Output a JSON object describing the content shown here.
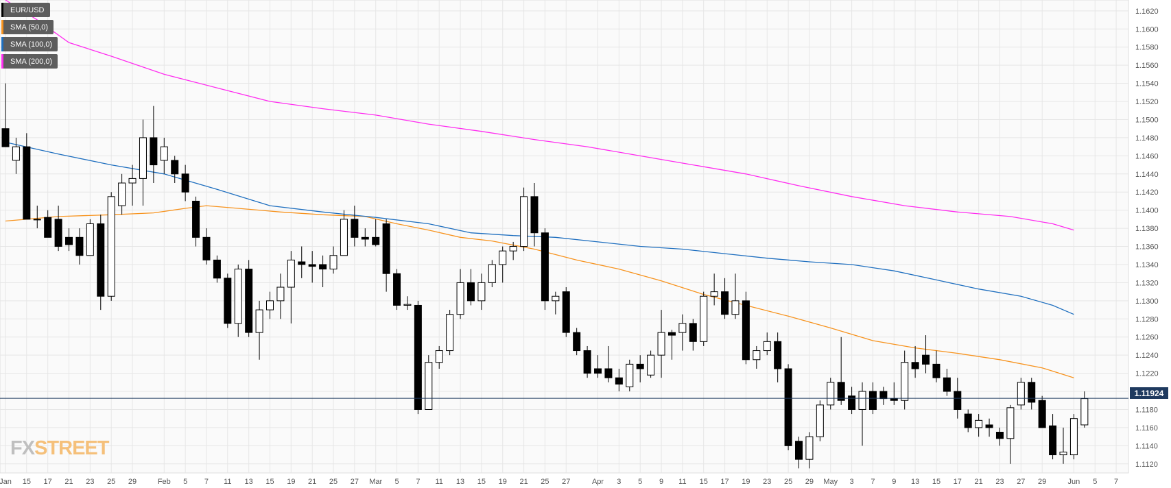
{
  "legend": [
    {
      "label": "EUR/USD",
      "color": "#000000"
    },
    {
      "label": "SMA (50,0)",
      "color": "#f7931e"
    },
    {
      "label": "SMA (100,0)",
      "color": "#1f6fbf"
    },
    {
      "label": "SMA (200,0)",
      "color": "#ff2cf0"
    }
  ],
  "logo": {
    "fx": "FX",
    "street": "STREET"
  },
  "last_price_label": "1.11924",
  "colors": {
    "up": "#ffffff",
    "down": "#000000",
    "grid": "#e6e6e6",
    "sma50": "#f7931e",
    "sma100": "#1f6fbf",
    "sma200": "#ff2cf0",
    "last_line": "#1f3a5f"
  },
  "chart_data": {
    "type": "candlestick",
    "title": "",
    "ylim": [
      1.111,
      1.1632
    ],
    "y_ticks": [
      "1.1120",
      "1.1140",
      "1.1160",
      "1.1180",
      "1.1200",
      "1.1220",
      "1.1240",
      "1.1260",
      "1.1280",
      "1.1300",
      "1.1320",
      "1.1340",
      "1.1360",
      "1.1380",
      "1.1400",
      "1.1420",
      "1.1440",
      "1.1460",
      "1.1480",
      "1.1500",
      "1.1520",
      "1.1540",
      "1.1560",
      "1.1580",
      "1.1600",
      "1.1620"
    ],
    "x_ticks": [
      {
        "label": "Jan",
        "i": 0
      },
      {
        "label": "15",
        "i": 2
      },
      {
        "label": "17",
        "i": 4
      },
      {
        "label": "21",
        "i": 6
      },
      {
        "label": "23",
        "i": 8
      },
      {
        "label": "25",
        "i": 10
      },
      {
        "label": "29",
        "i": 12
      },
      {
        "label": "Feb",
        "i": 15
      },
      {
        "label": "5",
        "i": 17
      },
      {
        "label": "7",
        "i": 19
      },
      {
        "label": "11",
        "i": 21
      },
      {
        "label": "13",
        "i": 23
      },
      {
        "label": "15",
        "i": 25
      },
      {
        "label": "19",
        "i": 27
      },
      {
        "label": "21",
        "i": 29
      },
      {
        "label": "25",
        "i": 31
      },
      {
        "label": "27",
        "i": 33
      },
      {
        "label": "Mar",
        "i": 35
      },
      {
        "label": "5",
        "i": 37
      },
      {
        "label": "7",
        "i": 39
      },
      {
        "label": "11",
        "i": 41
      },
      {
        "label": "13",
        "i": 43
      },
      {
        "label": "15",
        "i": 45
      },
      {
        "label": "19",
        "i": 47
      },
      {
        "label": "21",
        "i": 49
      },
      {
        "label": "25",
        "i": 51
      },
      {
        "label": "27",
        "i": 53
      },
      {
        "label": "Apr",
        "i": 56
      },
      {
        "label": "3",
        "i": 58
      },
      {
        "label": "5",
        "i": 60
      },
      {
        "label": "9",
        "i": 62
      },
      {
        "label": "11",
        "i": 64
      },
      {
        "label": "15",
        "i": 66
      },
      {
        "label": "17",
        "i": 68
      },
      {
        "label": "19",
        "i": 70
      },
      {
        "label": "23",
        "i": 72
      },
      {
        "label": "25",
        "i": 74
      },
      {
        "label": "29",
        "i": 76
      },
      {
        "label": "May",
        "i": 78
      },
      {
        "label": "3",
        "i": 80
      },
      {
        "label": "7",
        "i": 82
      },
      {
        "label": "9",
        "i": 84
      },
      {
        "label": "13",
        "i": 86
      },
      {
        "label": "15",
        "i": 88
      },
      {
        "label": "17",
        "i": 90
      },
      {
        "label": "21",
        "i": 92
      },
      {
        "label": "23",
        "i": 94
      },
      {
        "label": "27",
        "i": 96
      },
      {
        "label": "29",
        "i": 98
      },
      {
        "label": "Jun",
        "i": 101
      },
      {
        "label": "5",
        "i": 103
      },
      {
        "label": "7",
        "i": 105
      }
    ],
    "candles": [
      {
        "o": 1.149,
        "h": 1.154,
        "l": 1.147,
        "c": 1.147
      },
      {
        "o": 1.1455,
        "h": 1.148,
        "l": 1.144,
        "c": 1.147
      },
      {
        "o": 1.147,
        "h": 1.1485,
        "l": 1.139,
        "c": 1.139
      },
      {
        "o": 1.139,
        "h": 1.1405,
        "l": 1.138,
        "c": 1.139
      },
      {
        "o": 1.1392,
        "h": 1.14,
        "l": 1.137,
        "c": 1.137
      },
      {
        "o": 1.139,
        "h": 1.1405,
        "l": 1.1355,
        "c": 1.136
      },
      {
        "o": 1.137,
        "h": 1.138,
        "l": 1.1355,
        "c": 1.1362
      },
      {
        "o": 1.137,
        "h": 1.138,
        "l": 1.134,
        "c": 1.135
      },
      {
        "o": 1.135,
        "h": 1.139,
        "l": 1.135,
        "c": 1.1385
      },
      {
        "o": 1.1385,
        "h": 1.1395,
        "l": 1.129,
        "c": 1.1305
      },
      {
        "o": 1.1305,
        "h": 1.142,
        "l": 1.13,
        "c": 1.1415
      },
      {
        "o": 1.1405,
        "h": 1.144,
        "l": 1.1395,
        "c": 1.143
      },
      {
        "o": 1.143,
        "h": 1.145,
        "l": 1.1405,
        "c": 1.1435
      },
      {
        "o": 1.1435,
        "h": 1.15,
        "l": 1.1405,
        "c": 1.148
      },
      {
        "o": 1.148,
        "h": 1.1515,
        "l": 1.143,
        "c": 1.145
      },
      {
        "o": 1.1455,
        "h": 1.148,
        "l": 1.144,
        "c": 1.147
      },
      {
        "o": 1.1455,
        "h": 1.146,
        "l": 1.143,
        "c": 1.144
      },
      {
        "o": 1.144,
        "h": 1.145,
        "l": 1.141,
        "c": 1.142
      },
      {
        "o": 1.141,
        "h": 1.1415,
        "l": 1.136,
        "c": 1.137
      },
      {
        "o": 1.137,
        "h": 1.138,
        "l": 1.134,
        "c": 1.1345
      },
      {
        "o": 1.1345,
        "h": 1.135,
        "l": 1.132,
        "c": 1.1325
      },
      {
        "o": 1.1325,
        "h": 1.133,
        "l": 1.127,
        "c": 1.1275
      },
      {
        "o": 1.1275,
        "h": 1.134,
        "l": 1.126,
        "c": 1.1335
      },
      {
        "o": 1.1335,
        "h": 1.1345,
        "l": 1.126,
        "c": 1.1265
      },
      {
        "o": 1.1265,
        "h": 1.13,
        "l": 1.1235,
        "c": 1.129
      },
      {
        "o": 1.129,
        "h": 1.131,
        "l": 1.128,
        "c": 1.13
      },
      {
        "o": 1.13,
        "h": 1.133,
        "l": 1.128,
        "c": 1.1315
      },
      {
        "o": 1.1315,
        "h": 1.1355,
        "l": 1.1275,
        "c": 1.1345
      },
      {
        "o": 1.1343,
        "h": 1.136,
        "l": 1.1325,
        "c": 1.134
      },
      {
        "o": 1.134,
        "h": 1.1355,
        "l": 1.132,
        "c": 1.1338
      },
      {
        "o": 1.134,
        "h": 1.135,
        "l": 1.1315,
        "c": 1.1335
      },
      {
        "o": 1.1335,
        "h": 1.136,
        "l": 1.133,
        "c": 1.135
      },
      {
        "o": 1.135,
        "h": 1.14,
        "l": 1.135,
        "c": 1.139
      },
      {
        "o": 1.139,
        "h": 1.1405,
        "l": 1.136,
        "c": 1.137
      },
      {
        "o": 1.137,
        "h": 1.138,
        "l": 1.136,
        "c": 1.1368
      },
      {
        "o": 1.137,
        "h": 1.139,
        "l": 1.136,
        "c": 1.1362
      },
      {
        "o": 1.1385,
        "h": 1.139,
        "l": 1.131,
        "c": 1.133
      },
      {
        "o": 1.133,
        "h": 1.1335,
        "l": 1.129,
        "c": 1.1295
      },
      {
        "o": 1.1295,
        "h": 1.1305,
        "l": 1.129,
        "c": 1.1296
      },
      {
        "o": 1.1295,
        "h": 1.13,
        "l": 1.1175,
        "c": 1.118
      },
      {
        "o": 1.118,
        "h": 1.124,
        "l": 1.118,
        "c": 1.1232
      },
      {
        "o": 1.1232,
        "h": 1.125,
        "l": 1.1225,
        "c": 1.1245
      },
      {
        "o": 1.1245,
        "h": 1.129,
        "l": 1.124,
        "c": 1.1285
      },
      {
        "o": 1.1285,
        "h": 1.1335,
        "l": 1.128,
        "c": 1.132
      },
      {
        "o": 1.132,
        "h": 1.1335,
        "l": 1.1295,
        "c": 1.13
      },
      {
        "o": 1.13,
        "h": 1.133,
        "l": 1.129,
        "c": 1.132
      },
      {
        "o": 1.132,
        "h": 1.1345,
        "l": 1.1315,
        "c": 1.134
      },
      {
        "o": 1.134,
        "h": 1.136,
        "l": 1.132,
        "c": 1.1355
      },
      {
        "o": 1.1355,
        "h": 1.1365,
        "l": 1.1345,
        "c": 1.136
      },
      {
        "o": 1.136,
        "h": 1.1425,
        "l": 1.1355,
        "c": 1.1415
      },
      {
        "o": 1.1415,
        "h": 1.143,
        "l": 1.136,
        "c": 1.1375
      },
      {
        "o": 1.1375,
        "h": 1.138,
        "l": 1.129,
        "c": 1.13
      },
      {
        "o": 1.13,
        "h": 1.131,
        "l": 1.1285,
        "c": 1.1305
      },
      {
        "o": 1.131,
        "h": 1.1315,
        "l": 1.126,
        "c": 1.1265
      },
      {
        "o": 1.1265,
        "h": 1.127,
        "l": 1.124,
        "c": 1.1245
      },
      {
        "o": 1.1245,
        "h": 1.125,
        "l": 1.1215,
        "c": 1.122
      },
      {
        "o": 1.1225,
        "h": 1.124,
        "l": 1.1215,
        "c": 1.122
      },
      {
        "o": 1.1225,
        "h": 1.125,
        "l": 1.121,
        "c": 1.1215
      },
      {
        "o": 1.1215,
        "h": 1.1225,
        "l": 1.12,
        "c": 1.1208
      },
      {
        "o": 1.1205,
        "h": 1.1235,
        "l": 1.12,
        "c": 1.123
      },
      {
        "o": 1.123,
        "h": 1.124,
        "l": 1.121,
        "c": 1.1225
      },
      {
        "o": 1.1218,
        "h": 1.1245,
        "l": 1.1215,
        "c": 1.124
      },
      {
        "o": 1.124,
        "h": 1.129,
        "l": 1.1215,
        "c": 1.1265
      },
      {
        "o": 1.1265,
        "h": 1.1268,
        "l": 1.1235,
        "c": 1.1262
      },
      {
        "o": 1.1265,
        "h": 1.1285,
        "l": 1.1245,
        "c": 1.1275
      },
      {
        "o": 1.1275,
        "h": 1.128,
        "l": 1.1245,
        "c": 1.1255
      },
      {
        "o": 1.1255,
        "h": 1.131,
        "l": 1.125,
        "c": 1.1305
      },
      {
        "o": 1.1305,
        "h": 1.133,
        "l": 1.1295,
        "c": 1.131
      },
      {
        "o": 1.131,
        "h": 1.1325,
        "l": 1.128,
        "c": 1.1285
      },
      {
        "o": 1.1285,
        "h": 1.133,
        "l": 1.128,
        "c": 1.13
      },
      {
        "o": 1.13,
        "h": 1.131,
        "l": 1.123,
        "c": 1.1235
      },
      {
        "o": 1.1235,
        "h": 1.125,
        "l": 1.1225,
        "c": 1.1245
      },
      {
        "o": 1.1245,
        "h": 1.1265,
        "l": 1.124,
        "c": 1.1255
      },
      {
        "o": 1.1255,
        "h": 1.1265,
        "l": 1.121,
        "c": 1.1225
      },
      {
        "o": 1.1225,
        "h": 1.123,
        "l": 1.1135,
        "c": 1.114
      },
      {
        "o": 1.1145,
        "h": 1.115,
        "l": 1.1115,
        "c": 1.1125
      },
      {
        "o": 1.1125,
        "h": 1.1155,
        "l": 1.1115,
        "c": 1.115
      },
      {
        "o": 1.115,
        "h": 1.119,
        "l": 1.1145,
        "c": 1.1185
      },
      {
        "o": 1.1185,
        "h": 1.1215,
        "l": 1.118,
        "c": 1.121
      },
      {
        "o": 1.121,
        "h": 1.126,
        "l": 1.1185,
        "c": 1.119
      },
      {
        "o": 1.1195,
        "h": 1.1205,
        "l": 1.1175,
        "c": 1.118
      },
      {
        "o": 1.118,
        "h": 1.121,
        "l": 1.114,
        "c": 1.12
      },
      {
        "o": 1.12,
        "h": 1.121,
        "l": 1.1175,
        "c": 1.118
      },
      {
        "o": 1.12,
        "h": 1.1205,
        "l": 1.1185,
        "c": 1.1192
      },
      {
        "o": 1.1192,
        "h": 1.121,
        "l": 1.1185,
        "c": 1.119
      },
      {
        "o": 1.119,
        "h": 1.1245,
        "l": 1.118,
        "c": 1.1232
      },
      {
        "o": 1.1232,
        "h": 1.125,
        "l": 1.1215,
        "c": 1.1225
      },
      {
        "o": 1.124,
        "h": 1.1262,
        "l": 1.122,
        "c": 1.123
      },
      {
        "o": 1.123,
        "h": 1.1245,
        "l": 1.121,
        "c": 1.1215
      },
      {
        "o": 1.1215,
        "h": 1.1225,
        "l": 1.1195,
        "c": 1.12
      },
      {
        "o": 1.12,
        "h": 1.1215,
        "l": 1.117,
        "c": 1.118
      },
      {
        "o": 1.1175,
        "h": 1.118,
        "l": 1.1155,
        "c": 1.116
      },
      {
        "o": 1.116,
        "h": 1.1175,
        "l": 1.115,
        "c": 1.1168
      },
      {
        "o": 1.1163,
        "h": 1.117,
        "l": 1.115,
        "c": 1.116
      },
      {
        "o": 1.1155,
        "h": 1.116,
        "l": 1.114,
        "c": 1.1148
      },
      {
        "o": 1.1148,
        "h": 1.1185,
        "l": 1.112,
        "c": 1.1182
      },
      {
        "o": 1.1185,
        "h": 1.1215,
        "l": 1.118,
        "c": 1.121
      },
      {
        "o": 1.121,
        "h": 1.1215,
        "l": 1.118,
        "c": 1.1188
      },
      {
        "o": 1.119,
        "h": 1.1195,
        "l": 1.116,
        "c": 1.116
      },
      {
        "o": 1.1162,
        "h": 1.1175,
        "l": 1.1125,
        "c": 1.113
      },
      {
        "o": 1.113,
        "h": 1.116,
        "l": 1.112,
        "c": 1.1133
      },
      {
        "o": 1.113,
        "h": 1.1175,
        "l": 1.1125,
        "c": 1.117
      },
      {
        "o": 1.1163,
        "h": 1.12,
        "l": 1.116,
        "c": 1.1192
      }
    ],
    "series": [
      {
        "name": "SMA (50,0)",
        "points": [
          [
            0,
            1.1388
          ],
          [
            5,
            1.1393
          ],
          [
            10,
            1.1395
          ],
          [
            14,
            1.1397
          ],
          [
            17,
            1.1402
          ],
          [
            19,
            1.1405
          ],
          [
            22,
            1.1402
          ],
          [
            26,
            1.1398
          ],
          [
            30,
            1.1395
          ],
          [
            34,
            1.1393
          ],
          [
            37,
            1.1385
          ],
          [
            40,
            1.1378
          ],
          [
            43,
            1.137
          ],
          [
            46,
            1.1366
          ],
          [
            50,
            1.1357
          ],
          [
            54,
            1.1345
          ],
          [
            58,
            1.1335
          ],
          [
            62,
            1.1322
          ],
          [
            66,
            1.1307
          ],
          [
            70,
            1.1295
          ],
          [
            74,
            1.1283
          ],
          [
            78,
            1.127
          ],
          [
            82,
            1.1256
          ],
          [
            86,
            1.1248
          ],
          [
            90,
            1.1242
          ],
          [
            94,
            1.1235
          ],
          [
            98,
            1.1226
          ],
          [
            101,
            1.1215
          ]
        ]
      },
      {
        "name": "SMA (100,0)",
        "points": [
          [
            0,
            1.1475
          ],
          [
            5,
            1.1462
          ],
          [
            10,
            1.145
          ],
          [
            15,
            1.144
          ],
          [
            20,
            1.1423
          ],
          [
            25,
            1.1405
          ],
          [
            30,
            1.1398
          ],
          [
            35,
            1.1392
          ],
          [
            40,
            1.1385
          ],
          [
            44,
            1.1375
          ],
          [
            48,
            1.1372
          ],
          [
            52,
            1.137
          ],
          [
            56,
            1.1365
          ],
          [
            60,
            1.136
          ],
          [
            64,
            1.1357
          ],
          [
            68,
            1.1352
          ],
          [
            72,
            1.1347
          ],
          [
            76,
            1.1343
          ],
          [
            80,
            1.134
          ],
          [
            84,
            1.1333
          ],
          [
            88,
            1.1323
          ],
          [
            92,
            1.1313
          ],
          [
            96,
            1.1305
          ],
          [
            99,
            1.1295
          ],
          [
            101,
            1.1285
          ]
        ]
      },
      {
        "name": "SMA (200,0)",
        "points": [
          [
            0,
            1.1632
          ],
          [
            3,
            1.161
          ],
          [
            6,
            1.1585
          ],
          [
            10,
            1.157
          ],
          [
            15,
            1.155
          ],
          [
            20,
            1.1535
          ],
          [
            25,
            1.152
          ],
          [
            30,
            1.1512
          ],
          [
            35,
            1.1505
          ],
          [
            40,
            1.1495
          ],
          [
            45,
            1.1487
          ],
          [
            50,
            1.1478
          ],
          [
            55,
            1.147
          ],
          [
            60,
            1.146
          ],
          [
            65,
            1.145
          ],
          [
            70,
            1.144
          ],
          [
            75,
            1.1427
          ],
          [
            80,
            1.1415
          ],
          [
            85,
            1.1405
          ],
          [
            90,
            1.1398
          ],
          [
            95,
            1.1393
          ],
          [
            99,
            1.1385
          ],
          [
            101,
            1.1378
          ]
        ]
      }
    ],
    "last_price": 1.11924
  }
}
